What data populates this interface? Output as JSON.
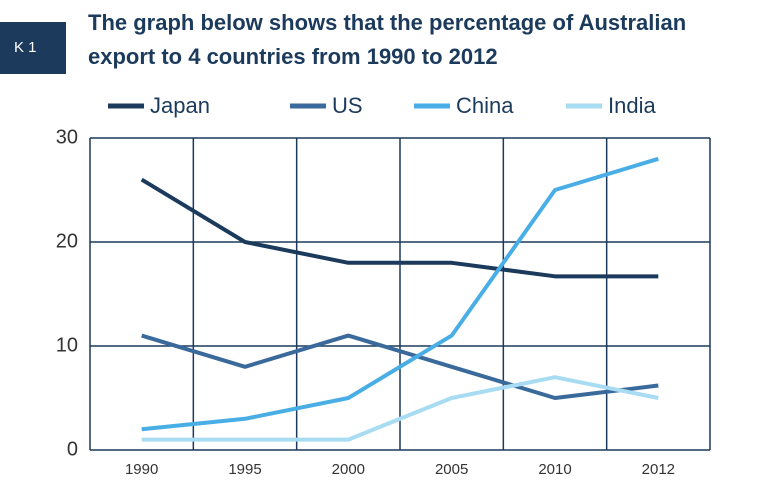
{
  "chart_data": {
    "type": "line",
    "badge": "K 1",
    "title": "The graph below shows that the percentage of Australian export to 4 countries from 1990 to 2012",
    "categories": [
      "1990",
      "1995",
      "2000",
      "2005",
      "2010",
      "2012"
    ],
    "series": [
      {
        "name": "Japan",
        "color": "#1b3a5c",
        "values": [
          26,
          20,
          18,
          18,
          16.7,
          16.7
        ]
      },
      {
        "name": "US",
        "color": "#3a6a9b",
        "values": [
          11,
          8,
          11,
          8,
          5,
          6.2
        ]
      },
      {
        "name": "China",
        "color": "#4aaee6",
        "values": [
          2,
          3,
          5,
          11,
          25,
          28
        ]
      },
      {
        "name": "India",
        "color": "#a8dcf2",
        "values": [
          1,
          1,
          1,
          5,
          7,
          5
        ]
      }
    ],
    "ylim": [
      0,
      30
    ],
    "yticks": [
      0,
      10,
      20,
      30
    ],
    "grid": true,
    "legend": "top"
  }
}
